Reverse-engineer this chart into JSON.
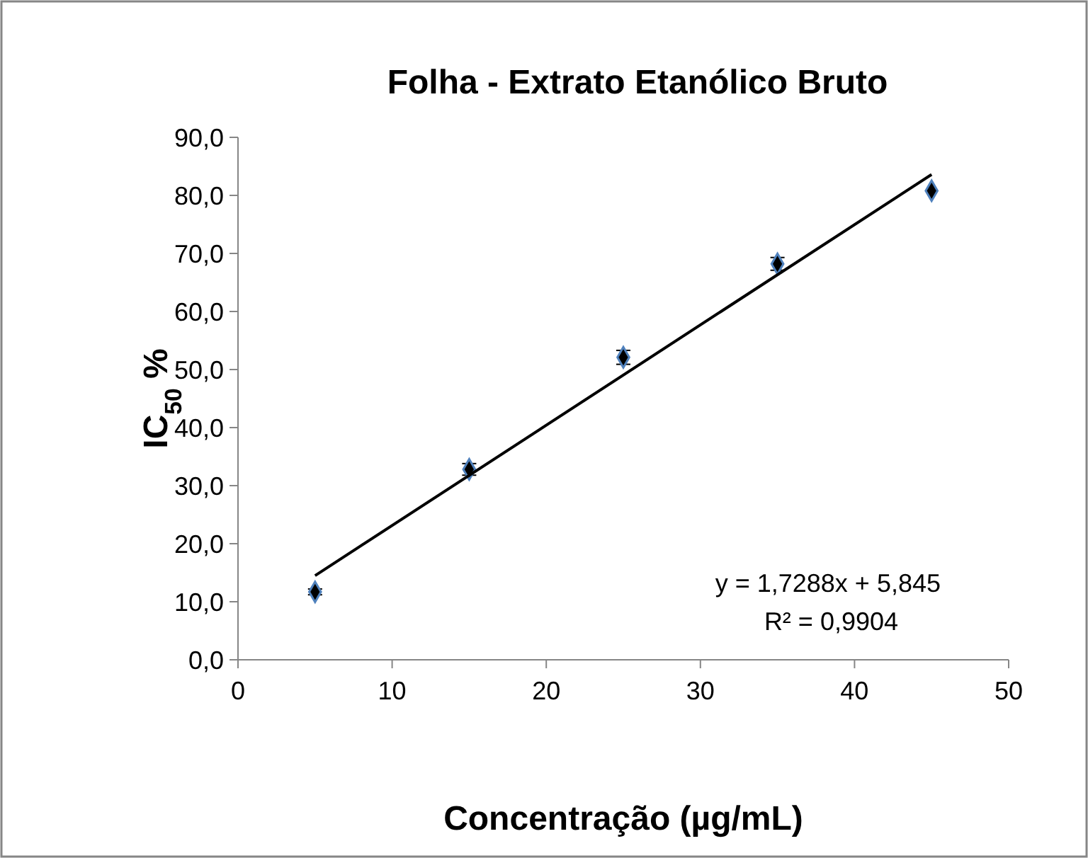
{
  "chart_data": {
    "type": "scatter",
    "title": "Folha - Extrato Etanólico Bruto",
    "xlabel": "Concentração (µg/mL)",
    "ylabel": "IC$_{50}$ %",
    "x": [
      5,
      15,
      25,
      35,
      45
    ],
    "series": [
      {
        "color": "#000000",
        "values": [
          11.7,
          32.8,
          52.1,
          68.2,
          80.8
        ],
        "errors": [
          0.5,
          1,
          1.2,
          1.1,
          null
        ],
        "marker": "diamond"
      },
      {
        "type": "line",
        "color": "#000000",
        "x": [
          5,
          45
        ],
        "values": [
          14.5,
          83.6
        ],
        "marker": "none",
        "line_style": "solid"
      }
    ],
    "xlim": [
      0,
      50
    ],
    "xticks": [
      0,
      10,
      20,
      30,
      40,
      50
    ],
    "ylim": [
      0,
      90
    ],
    "yticks": [
      {
        "value": 0,
        "label": "0,0"
      },
      {
        "value": 10,
        "label": "10,0"
      },
      {
        "value": 20,
        "label": "20,0"
      },
      {
        "value": 30,
        "label": "30,0"
      },
      {
        "value": 40,
        "label": "40,0"
      },
      {
        "value": 50,
        "label": "50,0"
      },
      {
        "value": 60,
        "label": "60,0"
      },
      {
        "value": 70,
        "label": "70,0"
      },
      {
        "value": 80,
        "label": "80,0"
      },
      {
        "value": 90,
        "label": "90,0"
      }
    ],
    "grid": false,
    "annotations": [
      "y = 1,7288x + 5,845",
      "R² = 0,9904"
    ]
  }
}
